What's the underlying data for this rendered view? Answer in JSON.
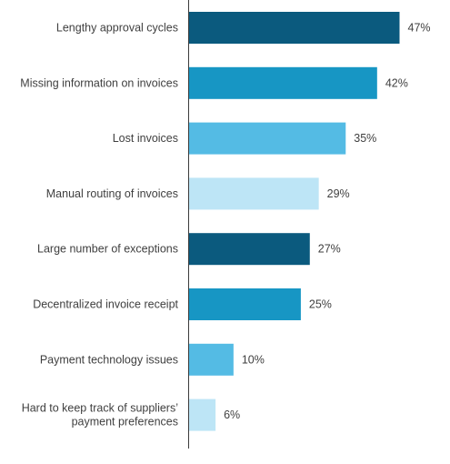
{
  "chart_data": {
    "type": "bar",
    "orientation": "horizontal",
    "categories": [
      [
        "Lengthy approval cycles"
      ],
      [
        "Missing information on invoices"
      ],
      [
        "Lost invoices"
      ],
      [
        "Manual routing of invoices"
      ],
      [
        "Large number of exceptions"
      ],
      [
        "Decentralized invoice receipt"
      ],
      [
        "Payment technology issues"
      ],
      [
        "Hard to keep track of suppliers’",
        "payment preferences"
      ]
    ],
    "values": [
      47,
      42,
      35,
      29,
      27,
      25,
      10,
      6
    ],
    "value_labels": [
      "47%",
      "42%",
      "35%",
      "29%",
      "27%",
      "25%",
      "10%",
      "6%"
    ],
    "colors": [
      "#0b5a7e",
      "#1796c4",
      "#54bbe4",
      "#bde5f6",
      "#0b5a7e",
      "#1796c4",
      "#54bbe4",
      "#bde5f6"
    ],
    "xlim": [
      0,
      47
    ],
    "title": "",
    "xlabel": "",
    "ylabel": "",
    "grid": false,
    "legend": "none"
  }
}
